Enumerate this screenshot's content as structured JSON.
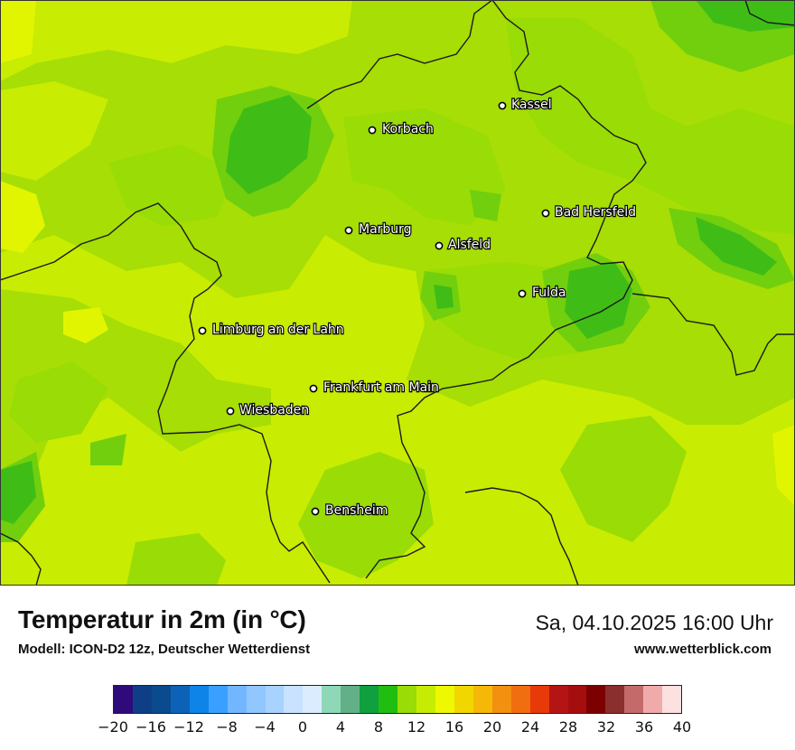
{
  "map": {
    "colors": {
      "green_dark": "#22b219",
      "green_mid": "#3fbd16",
      "green_light": "#72cf0d",
      "green_lime": "#99dc06",
      "yellow_green": "#c6ec03",
      "yellow": "#e2f500",
      "border": "#1a1a1a"
    },
    "cities": [
      {
        "name": "Kassel"
      },
      {
        "name": "Korbach"
      },
      {
        "name": "Bad Hersfeld"
      },
      {
        "name": "Marburg"
      },
      {
        "name": "Alsfeld"
      },
      {
        "name": "Fulda"
      },
      {
        "name": "Limburg an der Lahn"
      },
      {
        "name": "Frankfurt am Main"
      },
      {
        "name": "Wiesbaden"
      },
      {
        "name": "Bensheim"
      }
    ]
  },
  "header": {
    "title": "Temperatur in 2m (in °C)",
    "subtitle": "Modell: ICON-D2 12z, Deutscher Wetterdienst",
    "datetime": "Sa, 04.10.2025 16:00 Uhr",
    "website": "www.wetterblick.com"
  },
  "legend": {
    "colors": [
      "#2e0a7a",
      "#0e3f86",
      "#0a4a8e",
      "#0c62b6",
      "#0e84e8",
      "#39a0ff",
      "#72b6ff",
      "#92c6ff",
      "#a8d2ff",
      "#c8e2ff",
      "#dcecff",
      "#8ed8b8",
      "#62b088",
      "#10a040",
      "#20be10",
      "#99dc06",
      "#c6ec03",
      "#eef800",
      "#f2d600",
      "#f6b808",
      "#f49010",
      "#f06e10",
      "#e83a08",
      "#b51414",
      "#a50e0e",
      "#7c0000",
      "#8a2e2e",
      "#c46a6a",
      "#f0aaaa",
      "#fde0e0"
    ],
    "ticks": [
      "−20",
      "−16",
      "−12",
      "−8",
      "−4",
      "0",
      "4",
      "8",
      "12",
      "16",
      "20",
      "24",
      "28",
      "32",
      "36",
      "40"
    ]
  }
}
